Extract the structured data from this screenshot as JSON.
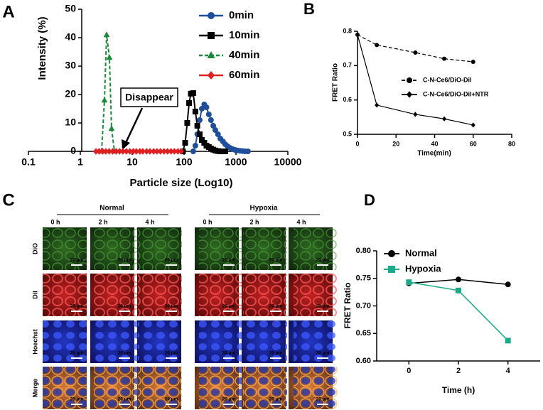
{
  "chart_data": [
    {
      "type": "line",
      "panel": "A",
      "xlabel": "Particle size (Log10)",
      "ylabel": "Intensity (%)",
      "xscale": "log",
      "xlim": [
        0.1,
        10000
      ],
      "xticks": [
        0.1,
        1,
        10,
        100,
        1000,
        10000
      ],
      "ylim": [
        0,
        50
      ],
      "yticks": [
        0,
        10,
        20,
        30,
        40,
        50
      ],
      "annotations": [
        "Disappear"
      ],
      "series": [
        {
          "name": "0min",
          "color": "#1f4e9c",
          "marker": "circle",
          "dash": false,
          "x": [
            150,
            165,
            180,
            200,
            220,
            245,
            270,
            300,
            330,
            365,
            400,
            450,
            500,
            560,
            620,
            690,
            770,
            860,
            960,
            1070,
            1200,
            1340,
            1500,
            1700
          ],
          "values": [
            0,
            2,
            6,
            11,
            15,
            16.5,
            15.5,
            13,
            11,
            9,
            7.5,
            6,
            4.5,
            3.5,
            2.5,
            1.8,
            1.2,
            0.8,
            0.5,
            0.3,
            0.2,
            0.1,
            0,
            0
          ]
        },
        {
          "name": "10min",
          "color": "#000000",
          "marker": "square",
          "dash": false,
          "x": [
            95,
            105,
            115,
            125,
            135,
            150,
            165,
            180,
            200,
            220,
            245,
            270,
            300,
            330,
            365,
            400,
            450,
            500,
            560,
            620
          ],
          "values": [
            0,
            3,
            10,
            17,
            20.3,
            20.5,
            14,
            9,
            6,
            4,
            3,
            2,
            1.5,
            1,
            0.6,
            0.3,
            0.1,
            0,
            0,
            0
          ]
        },
        {
          "name": "40min",
          "color": "#1a8a3a",
          "marker": "triangle",
          "dash": true,
          "x": [
            2.57,
            2.92,
            3.21,
            3.64,
            4.0,
            4.55
          ],
          "values": [
            0,
            18,
            41,
            33,
            8,
            0
          ]
        },
        {
          "name": "60min",
          "color": "#e02020",
          "marker": "diamond",
          "dash": false,
          "x": [
            2,
            2.3,
            2.7,
            3.1,
            3.6,
            4.2,
            4.9,
            5.7,
            6.6,
            7.7,
            9,
            10.5,
            12,
            14,
            16,
            19,
            22,
            26,
            30,
            35,
            41,
            48,
            56,
            65,
            76,
            88
          ],
          "values": [
            0,
            0,
            0,
            0,
            0,
            0,
            0,
            0,
            0,
            0,
            0,
            0,
            0,
            0,
            0,
            0,
            0,
            0,
            0,
            0,
            0,
            0,
            0,
            0,
            0,
            0
          ]
        }
      ]
    },
    {
      "type": "line",
      "panel": "B",
      "xlabel": "Time(min)",
      "ylabel": "FRET Ratio",
      "xlim": [
        0,
        80
      ],
      "xticks": [
        0,
        20,
        40,
        60,
        80
      ],
      "ylim": [
        0.5,
        0.8
      ],
      "yticks": [
        0.5,
        0.6,
        0.7,
        0.8
      ],
      "series": [
        {
          "name": "C-N-Ce6/DiO-Dil",
          "color": "#000000",
          "marker": "circle",
          "dash": true,
          "x": [
            0,
            10,
            30,
            45,
            60
          ],
          "values": [
            0.79,
            0.76,
            0.738,
            0.72,
            0.711
          ]
        },
        {
          "name": "C-N-Ce6/DiO-Dil+NTR",
          "color": "#000000",
          "marker": "diamond",
          "dash": false,
          "x": [
            0,
            10,
            30,
            45,
            60
          ],
          "values": [
            0.79,
            0.585,
            0.558,
            0.545,
            0.527
          ]
        }
      ]
    },
    {
      "type": "line",
      "panel": "D",
      "xlabel": "Time (h)",
      "ylabel": "FRET Ratio",
      "xlim": [
        -1.3,
        5.3
      ],
      "xticks": [
        0,
        2,
        4
      ],
      "ylim": [
        0.6,
        0.8
      ],
      "yticks": [
        {
          "value": 0.6,
          "label": "0.60"
        },
        {
          "value": 0.65,
          "label": "0.65"
        },
        {
          "value": 0.7,
          "label": "0.70"
        },
        {
          "value": 0.75,
          "label": "0.75"
        },
        {
          "value": 0.8,
          "label": "0.80"
        }
      ],
      "series": [
        {
          "name": "Normal",
          "color": "#000000",
          "marker": "circle",
          "dash": false,
          "x": [
            0,
            2,
            4
          ],
          "values": [
            0.741,
            0.748,
            0.739
          ]
        },
        {
          "name": "Hypoxia",
          "color": "#1aab8a",
          "marker": "square",
          "dash": false,
          "x": [
            0,
            2,
            4
          ],
          "values": [
            0.743,
            0.728,
            0.637
          ]
        }
      ]
    }
  ],
  "micrograph": {
    "panel": "C",
    "groups": [
      "Normal",
      "Hypoxia"
    ],
    "times": [
      "0 h",
      "2 h",
      "4 h"
    ],
    "rows": [
      "DiO",
      "DiI",
      "Hoechst",
      "Merge"
    ],
    "scale_bar": "20 μm"
  }
}
